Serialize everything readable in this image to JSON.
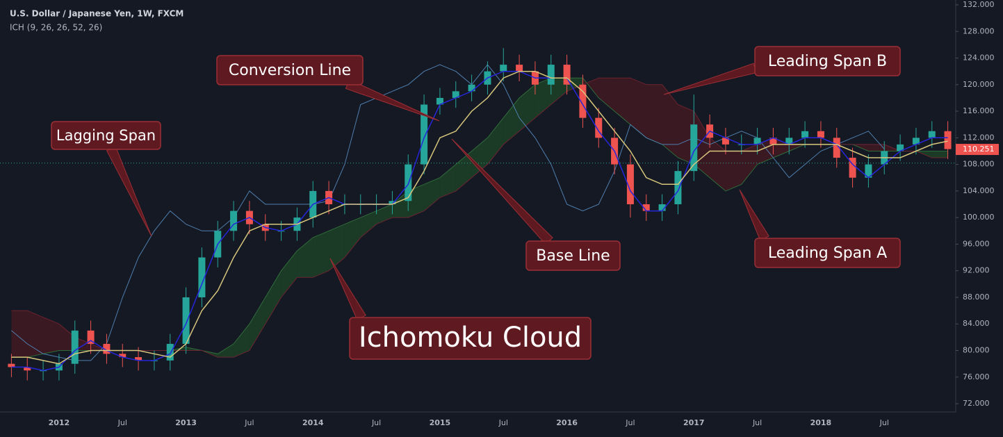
{
  "chart_data": {
    "type": "candlestick",
    "title": "U.S. Dollar / Japanese Yen, 1W, FXCM",
    "subtitle": "ICH (9, 26, 26, 52, 26)",
    "categories": [
      null,
      null,
      null,
      "2012",
      null,
      null,
      null,
      "Jul",
      null,
      null,
      null,
      "2013",
      null,
      null,
      null,
      "Jul",
      null,
      null,
      null,
      "2014",
      null,
      null,
      null,
      "Jul",
      null,
      null,
      null,
      "2015",
      null,
      null,
      null,
      "Jul",
      null,
      null,
      null,
      "2016",
      null,
      null,
      null,
      "Jul",
      null,
      null,
      null,
      "2017",
      null,
      null,
      null,
      "Jul",
      null,
      null,
      null,
      "2018",
      null,
      null,
      null,
      "Jul",
      null,
      null,
      null,
      null
    ],
    "open": [
      78,
      77.5,
      77,
      77,
      78,
      83,
      81,
      79.5,
      79,
      78.5,
      78.5,
      81,
      88,
      94,
      98,
      101,
      99,
      98,
      98,
      100,
      104,
      102,
      102,
      102,
      102,
      102.5,
      108,
      117,
      118,
      119,
      120,
      122,
      123,
      122,
      120,
      123,
      120,
      115,
      112,
      108,
      102,
      101,
      102,
      107,
      114,
      112,
      111,
      111,
      112,
      111,
      112,
      113,
      112,
      109,
      106,
      108,
      110,
      111,
      112,
      113
    ],
    "high": [
      79.5,
      79,
      78.5,
      79.5,
      84.5,
      84.5,
      82.5,
      81,
      80.5,
      80,
      82.5,
      89.5,
      95.5,
      99.5,
      102.5,
      102.5,
      100.5,
      99.5,
      101.5,
      105.5,
      105.5,
      103.5,
      103.5,
      103.5,
      104,
      109.5,
      118.5,
      119.5,
      120.5,
      121.5,
      123.5,
      125.5,
      124.5,
      123.5,
      124.5,
      124.5,
      121.5,
      116.5,
      113.5,
      109.5,
      103.5,
      103.5,
      108.5,
      118.5,
      115.5,
      113.5,
      112.5,
      113.5,
      113.5,
      113.5,
      114.5,
      114.5,
      113.5,
      110.5,
      109.5,
      111.5,
      112.5,
      113.5,
      114.5,
      114.5
    ],
    "low": [
      76,
      75.5,
      75.5,
      75.5,
      76.5,
      79.5,
      78,
      77.5,
      77,
      77,
      77,
      79.5,
      86.5,
      92.5,
      96.5,
      97.5,
      96.5,
      96.5,
      96.5,
      98.5,
      100.5,
      100.5,
      100.5,
      100.5,
      100.5,
      101,
      106.5,
      115.5,
      116.5,
      117.5,
      118.5,
      120.5,
      120.5,
      118.5,
      118.5,
      118.5,
      113.5,
      110.5,
      106.5,
      100,
      99.5,
      99.5,
      100.5,
      105.5,
      110.5,
      109.5,
      109.5,
      109.5,
      109.5,
      109.5,
      110.5,
      110.5,
      107.5,
      104.5,
      104.5,
      106.5,
      108.5,
      109.5,
      110.5,
      108.8
    ],
    "close": [
      77.5,
      77,
      77,
      78,
      83,
      81,
      79.5,
      79,
      78.5,
      78.5,
      81,
      88,
      94,
      98,
      101,
      99,
      98,
      98,
      100,
      104,
      102,
      102,
      102,
      102,
      102.5,
      108,
      117,
      118,
      119,
      120,
      122,
      123,
      122,
      120,
      123,
      120,
      115,
      112,
      108,
      102,
      101,
      102,
      107,
      114,
      112,
      111,
      111,
      112,
      111,
      112,
      113,
      112,
      109,
      106,
      108,
      110,
      111,
      112,
      113,
      110.3
    ],
    "up_color": "#26a69a",
    "down_color": "#ef5350",
    "cloud": {
      "span_a": [
        79,
        79,
        79.5,
        80,
        80,
        80,
        80,
        80,
        80,
        80,
        80,
        80.5,
        80,
        79.5,
        81,
        84,
        88,
        92,
        95,
        97,
        98,
        99,
        100,
        101,
        102,
        104,
        105,
        106,
        108,
        110,
        112,
        115,
        118,
        120,
        121,
        121,
        121,
        118,
        116,
        114,
        112,
        111,
        109,
        108,
        106,
        104,
        105,
        108,
        109,
        110,
        111,
        111,
        111,
        111,
        110,
        110,
        110,
        110,
        110,
        110
      ],
      "span_b": [
        86,
        86,
        85,
        84,
        82,
        81,
        80,
        80,
        80,
        80,
        80,
        80,
        80,
        79,
        79,
        80,
        84,
        88,
        91,
        91,
        92,
        94,
        97,
        99,
        100,
        100,
        101,
        103,
        104,
        106,
        108,
        111,
        113,
        115,
        117,
        119,
        120,
        121,
        121,
        121,
        120,
        120,
        117,
        116,
        112,
        110,
        110,
        111,
        112,
        111,
        111,
        111,
        111,
        111,
        111,
        111,
        110,
        110,
        109,
        109
      ],
      "span_a_color": "#2f6b3a",
      "span_b_color": "#6b2430",
      "bull_fill": "#1f4a2a",
      "bear_fill": "#4a1a24"
    },
    "series": [
      {
        "color": "#2626d9",
        "values": [
          77.5,
          77.5,
          77,
          77.5,
          80,
          81.5,
          80,
          79,
          78.5,
          78.5,
          79.5,
          84,
          90,
          96,
          99,
          100,
          98.5,
          98,
          99,
          102,
          103,
          102,
          102,
          102,
          102,
          105,
          112,
          117,
          118,
          119,
          121,
          122,
          122,
          121,
          121,
          121,
          117,
          113,
          110,
          104,
          101,
          101,
          104,
          110,
          113,
          112,
          111,
          111,
          112,
          111,
          112,
          112,
          111,
          108,
          106,
          108,
          110,
          111,
          112,
          112
        ]
      },
      {
        "color": "#d8c77c",
        "values": [
          79,
          79,
          78.5,
          78,
          79.5,
          80,
          80,
          80,
          80,
          79.5,
          79,
          81,
          86,
          89,
          94,
          98,
          99,
          99,
          99,
          100,
          101,
          102,
          102,
          102,
          102,
          103,
          107,
          112,
          113,
          116,
          118,
          121,
          122,
          122,
          121,
          121,
          119,
          116,
          113,
          110,
          106,
          105,
          105,
          108,
          110,
          110,
          110,
          110,
          111,
          111,
          111,
          111,
          111,
          110,
          109,
          109,
          109,
          110,
          111,
          111.5
        ]
      },
      {
        "color": "#4f7fae",
        "values": [
          83,
          81,
          79.5,
          79,
          78.5,
          78.5,
          81,
          88,
          94,
          98,
          101,
          99,
          98,
          98,
          100,
          104,
          102,
          102,
          102,
          102,
          102.5,
          108,
          117,
          118,
          119,
          120,
          122,
          123,
          122,
          120,
          123,
          120,
          115,
          112,
          108,
          102,
          101,
          102,
          107,
          114,
          112,
          111,
          111,
          112,
          111,
          112,
          113,
          112,
          109,
          106,
          108,
          110,
          111,
          112,
          113,
          110.3,
          null,
          null,
          null,
          null
        ]
      }
    ],
    "price_line": 108.2,
    "last_price": 110.251,
    "last_price_color": "#ef5350",
    "ylim": [
      70.75,
      132.73
    ],
    "yticks": [
      {
        "value": 72,
        "label": "72.000"
      },
      {
        "value": 76,
        "label": "76.000"
      },
      {
        "value": 80,
        "label": "80.000"
      },
      {
        "value": 84,
        "label": "84.000"
      },
      {
        "value": 88,
        "label": "88.000"
      },
      {
        "value": 92,
        "label": "92.000"
      },
      {
        "value": 96,
        "label": "96.000"
      },
      {
        "value": 100,
        "label": "100.000"
      },
      {
        "value": 104,
        "label": "104.000"
      },
      {
        "value": 108,
        "label": "108.000"
      },
      {
        "value": 112,
        "label": "112.000"
      },
      {
        "value": 116,
        "label": "116.000"
      },
      {
        "value": 120,
        "label": "120.000"
      },
      {
        "value": 124,
        "label": "124.000"
      },
      {
        "value": 128,
        "label": "128.000"
      },
      {
        "value": 132,
        "label": "132.000"
      }
    ],
    "annotations": [
      "Conversion Line",
      "Lagging Span",
      "Base Line",
      "Ichomoku Cloud",
      "Leading Span B",
      "Leading Span A"
    ]
  }
}
